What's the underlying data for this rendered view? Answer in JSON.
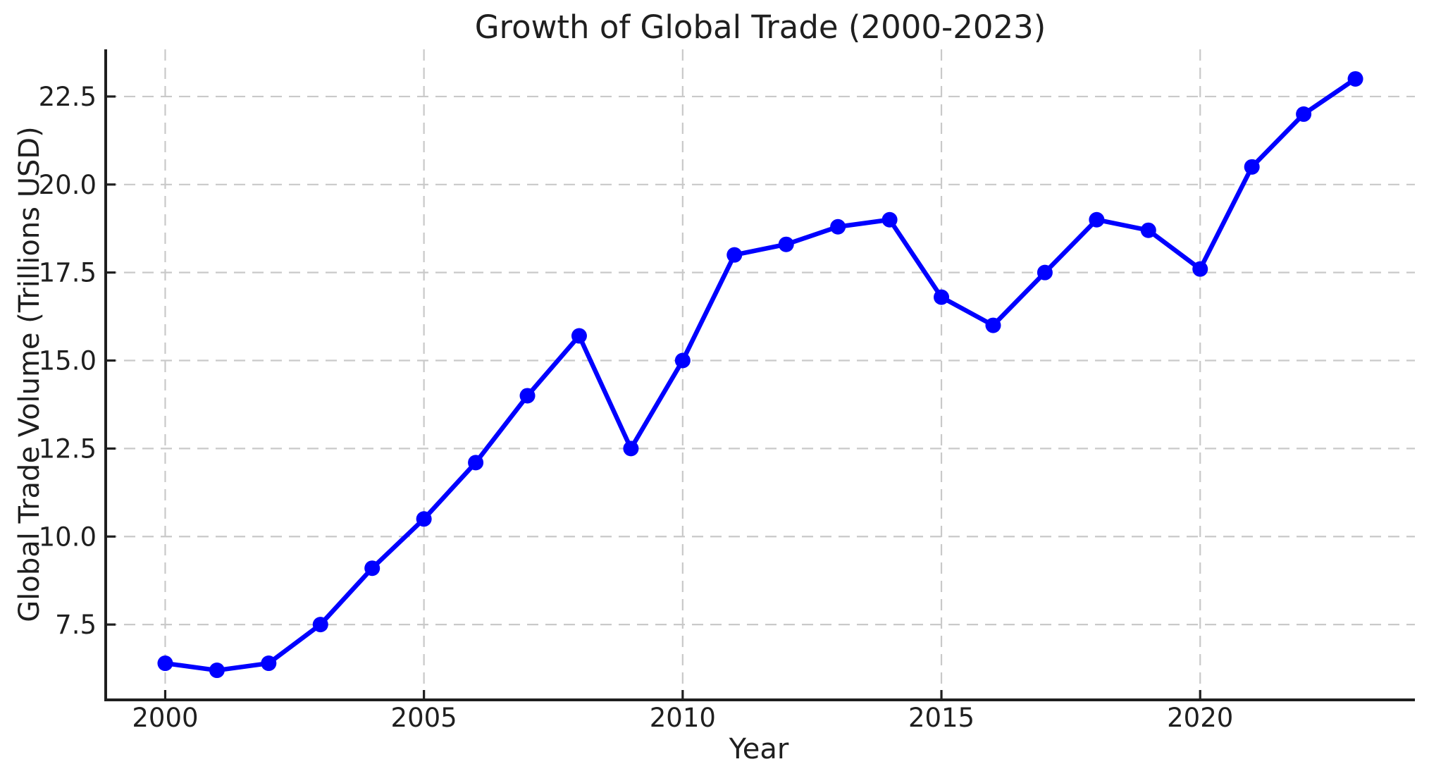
{
  "chart_data": {
    "type": "line",
    "title": "Growth of Global Trade (2000-2023)",
    "xlabel": "Year",
    "ylabel": "Global Trade Volume (Trillions USD)",
    "x": [
      2000,
      2001,
      2002,
      2003,
      2004,
      2005,
      2006,
      2007,
      2008,
      2009,
      2010,
      2011,
      2012,
      2013,
      2014,
      2015,
      2016,
      2017,
      2018,
      2019,
      2020,
      2021,
      2022,
      2023
    ],
    "values": [
      6.4,
      6.2,
      6.4,
      7.5,
      9.1,
      10.5,
      12.1,
      14.0,
      15.7,
      12.5,
      15.0,
      18.0,
      18.3,
      18.8,
      19.0,
      16.8,
      16.0,
      17.5,
      19.0,
      18.7,
      17.6,
      20.5,
      22.0,
      23.0
    ],
    "xticks": [
      2000,
      2005,
      2010,
      2015,
      2020
    ],
    "xtick_labels": [
      "2000",
      "2005",
      "2010",
      "2015",
      "2020"
    ],
    "yticks": [
      7.5,
      10.0,
      12.5,
      15.0,
      17.5,
      20.0,
      22.5
    ],
    "ytick_labels": [
      "7.5",
      "10.0",
      "12.5",
      "15.0",
      "17.5",
      "20.0",
      "22.5"
    ],
    "xlim": [
      1998.85,
      2024.15
    ],
    "ylim": [
      5.36,
      23.84
    ],
    "grid": true,
    "grid_linestyle": "dashed",
    "legend_position": "none",
    "line_color": "#0000ff",
    "marker": "circle",
    "marker_color": "#0000ff",
    "background_color": "#ffffff",
    "text_color": "#1f1f1f",
    "grid_color": "#c9c9c9",
    "spine_color": "#1f1f1f"
  }
}
